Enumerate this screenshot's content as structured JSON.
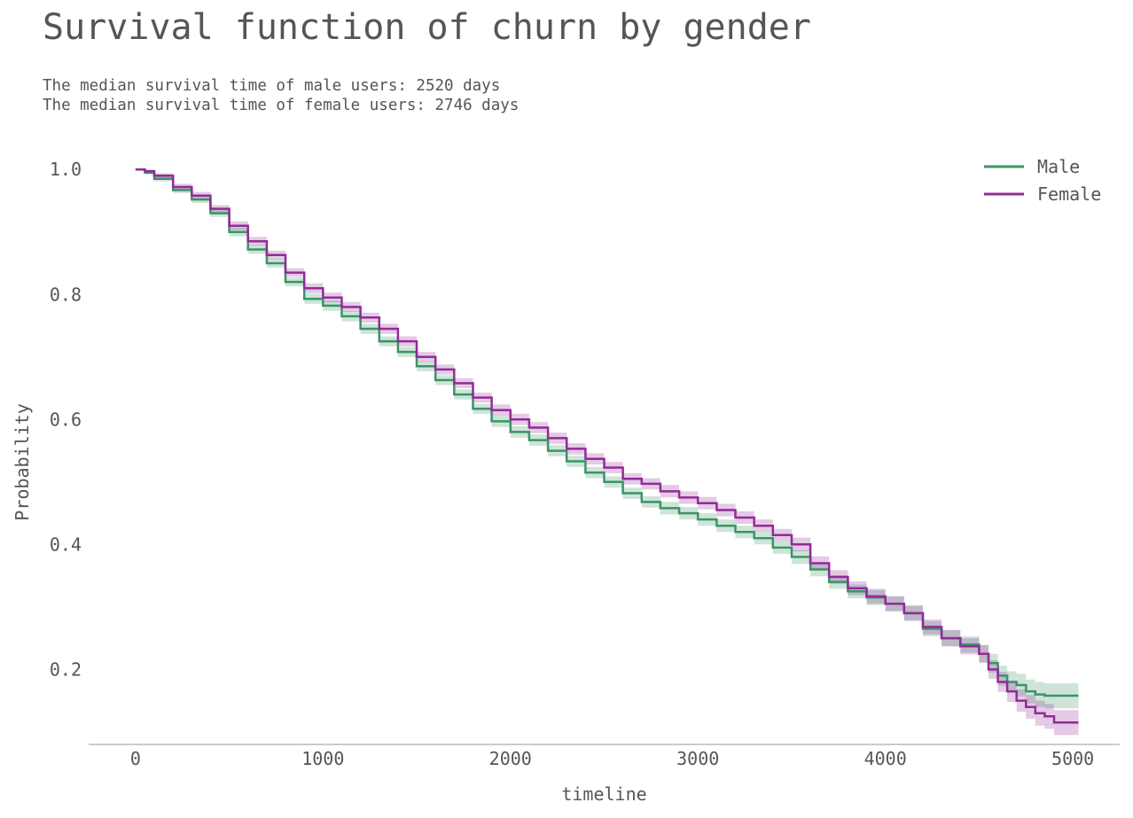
{
  "header": {
    "title": "Survival function of churn by gender",
    "subtitle_lines": [
      "The median survival time of male users: 2520 days",
      "The median survival time of female users: 2746 days"
    ]
  },
  "chart_data": {
    "type": "line",
    "title": "Survival function of churn by gender",
    "xlabel": "timeline",
    "ylabel": "Probability",
    "xlim": [
      -250,
      5250
    ],
    "ylim": [
      0.08,
      1.04
    ],
    "x_ticks": [
      0,
      1000,
      2000,
      3000,
      4000,
      5000
    ],
    "y_ticks": [
      0.2,
      0.4,
      0.6,
      0.8,
      1.0
    ],
    "y_tick_labels": [
      "0.2",
      "0.4",
      "0.6",
      "0.8",
      "1.0"
    ],
    "grid": false,
    "legend_position": "top-right",
    "series": [
      {
        "name": "Male",
        "color": "#3a9466",
        "x": [
          0,
          50,
          100,
          200,
          300,
          400,
          500,
          600,
          700,
          800,
          900,
          1000,
          1100,
          1200,
          1300,
          1400,
          1500,
          1600,
          1700,
          1800,
          1900,
          2000,
          2100,
          2200,
          2300,
          2400,
          2500,
          2600,
          2700,
          2800,
          2900,
          3000,
          3100,
          3200,
          3300,
          3400,
          3500,
          3600,
          3700,
          3800,
          3900,
          4000,
          4100,
          4200,
          4300,
          4400,
          4500,
          4550,
          4600,
          4650,
          4700,
          4750,
          4800,
          4850,
          4900,
          5000,
          5030
        ],
        "y": [
          1.0,
          0.995,
          0.985,
          0.967,
          0.952,
          0.93,
          0.9,
          0.872,
          0.85,
          0.82,
          0.793,
          0.782,
          0.765,
          0.745,
          0.725,
          0.708,
          0.685,
          0.663,
          0.64,
          0.617,
          0.597,
          0.58,
          0.567,
          0.55,
          0.533,
          0.515,
          0.5,
          0.482,
          0.468,
          0.458,
          0.45,
          0.44,
          0.43,
          0.42,
          0.41,
          0.395,
          0.38,
          0.36,
          0.34,
          0.325,
          0.315,
          0.305,
          0.29,
          0.265,
          0.25,
          0.24,
          0.225,
          0.21,
          0.19,
          0.18,
          0.175,
          0.165,
          0.16,
          0.158,
          0.158,
          0.158,
          0.158
        ],
        "ci_half_width": [
          0.0,
          0.003,
          0.004,
          0.005,
          0.006,
          0.006,
          0.007,
          0.007,
          0.007,
          0.007,
          0.008,
          0.008,
          0.008,
          0.008,
          0.008,
          0.008,
          0.008,
          0.008,
          0.008,
          0.008,
          0.009,
          0.009,
          0.009,
          0.009,
          0.009,
          0.009,
          0.009,
          0.009,
          0.009,
          0.01,
          0.01,
          0.01,
          0.01,
          0.01,
          0.01,
          0.01,
          0.011,
          0.011,
          0.011,
          0.011,
          0.012,
          0.012,
          0.012,
          0.012,
          0.013,
          0.013,
          0.014,
          0.015,
          0.016,
          0.017,
          0.018,
          0.019,
          0.02,
          0.02,
          0.02,
          0.02,
          0.02
        ]
      },
      {
        "name": "Female",
        "color": "#922b98",
        "x": [
          0,
          50,
          100,
          200,
          300,
          400,
          500,
          600,
          700,
          800,
          900,
          1000,
          1100,
          1200,
          1300,
          1400,
          1500,
          1600,
          1700,
          1800,
          1900,
          2000,
          2100,
          2200,
          2300,
          2400,
          2500,
          2600,
          2700,
          2800,
          2900,
          3000,
          3100,
          3200,
          3300,
          3400,
          3500,
          3600,
          3700,
          3800,
          3900,
          4000,
          4100,
          4200,
          4300,
          4400,
          4500,
          4550,
          4600,
          4650,
          4700,
          4750,
          4800,
          4850,
          4900,
          5000,
          5030
        ],
        "y": [
          1.0,
          0.997,
          0.99,
          0.972,
          0.958,
          0.937,
          0.91,
          0.885,
          0.863,
          0.835,
          0.81,
          0.795,
          0.78,
          0.763,
          0.745,
          0.725,
          0.7,
          0.68,
          0.658,
          0.635,
          0.615,
          0.6,
          0.587,
          0.57,
          0.553,
          0.537,
          0.523,
          0.505,
          0.497,
          0.485,
          0.475,
          0.466,
          0.455,
          0.443,
          0.43,
          0.415,
          0.4,
          0.37,
          0.348,
          0.33,
          0.317,
          0.305,
          0.29,
          0.268,
          0.25,
          0.237,
          0.225,
          0.2,
          0.18,
          0.165,
          0.15,
          0.14,
          0.13,
          0.125,
          0.115,
          0.115,
          0.115
        ],
        "ci_half_width": [
          0.0,
          0.003,
          0.004,
          0.005,
          0.006,
          0.006,
          0.007,
          0.007,
          0.007,
          0.007,
          0.008,
          0.008,
          0.008,
          0.008,
          0.008,
          0.008,
          0.008,
          0.008,
          0.008,
          0.008,
          0.009,
          0.009,
          0.009,
          0.009,
          0.009,
          0.009,
          0.009,
          0.009,
          0.009,
          0.01,
          0.01,
          0.01,
          0.01,
          0.01,
          0.01,
          0.01,
          0.011,
          0.011,
          0.011,
          0.011,
          0.012,
          0.012,
          0.012,
          0.012,
          0.013,
          0.013,
          0.014,
          0.015,
          0.016,
          0.017,
          0.018,
          0.019,
          0.02,
          0.02,
          0.02,
          0.02,
          0.02
        ]
      }
    ]
  }
}
